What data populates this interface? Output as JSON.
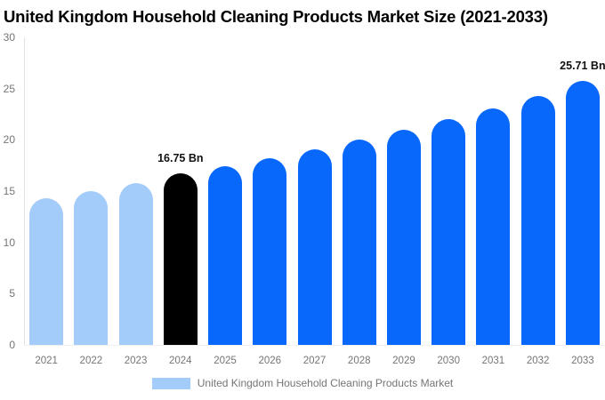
{
  "title": "United Kingdom Household Cleaning Products Market Size (2021-2033)",
  "chart_data": {
    "type": "bar",
    "title": "United Kingdom Household Cleaning Products Market Size (2021-2033)",
    "categories": [
      "2021",
      "2022",
      "2023",
      "2024",
      "2025",
      "2026",
      "2027",
      "2028",
      "2029",
      "2030",
      "2031",
      "2032",
      "2033"
    ],
    "values": [
      14.3,
      15.0,
      15.8,
      16.75,
      17.4,
      18.2,
      19.1,
      20.0,
      21.0,
      22.0,
      23.1,
      24.3,
      25.71
    ],
    "unit": "Bn",
    "ylim": [
      0,
      30
    ],
    "yticks": [
      "0",
      "5",
      "10",
      "15",
      "20",
      "25",
      "30"
    ],
    "grid": false,
    "bar_roles": [
      "historical",
      "historical",
      "historical",
      "current",
      "forecast",
      "forecast",
      "forecast",
      "forecast",
      "forecast",
      "forecast",
      "forecast",
      "forecast",
      "forecast"
    ],
    "annotations": [
      {
        "index": 3,
        "label": "16.75 Bn"
      },
      {
        "index": 12,
        "label": "25.71 Bn"
      }
    ],
    "legend": {
      "position": "bottom",
      "label": "United Kingdom Household Cleaning Products Market",
      "swatch_color": "#a4ccfa"
    },
    "colors": {
      "historical": "#a4ccfa",
      "current": "#000000",
      "forecast": "#0768fb",
      "axis_line": "#e2e2e2",
      "tick_text": "#757575",
      "annotation_text": "#111111",
      "title_text": "#000000"
    }
  }
}
